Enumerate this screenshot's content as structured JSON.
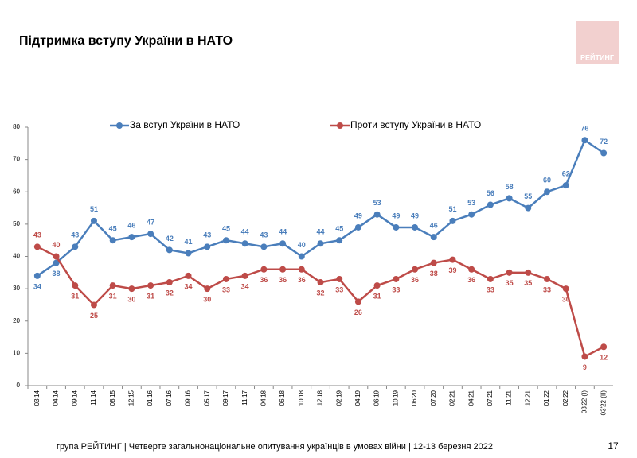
{
  "slide_title": "Підтримка вступу України в НАТО",
  "logo": "РЕЙТИНГ",
  "chart_data": {
    "type": "line",
    "categories": [
      "03'14",
      "04'14",
      "09'14",
      "11'14",
      "08'15",
      "12'15",
      "01'16",
      "07'16",
      "09'16",
      "05'17",
      "09'17",
      "11'17",
      "04'18",
      "06'18",
      "10'18",
      "12'18",
      "02'19",
      "04'19",
      "06'19",
      "10'19",
      "06'20",
      "07'20",
      "02'21",
      "04'21",
      "07'21",
      "11'21",
      "12'21",
      "01'22",
      "02'22",
      "03'22 (I)",
      "03'22 (II)"
    ],
    "series": [
      {
        "name": "За вступ України в НАТО",
        "color": "#4a7ebb",
        "values": [
          34,
          38,
          43,
          51,
          45,
          46,
          47,
          42,
          41,
          43,
          45,
          44,
          43,
          44,
          40,
          44,
          45,
          49,
          53,
          49,
          49,
          46,
          51,
          53,
          56,
          58,
          55,
          60,
          62,
          76,
          72
        ]
      },
      {
        "name": "Проти вступу України в НАТО",
        "color": "#be4b48",
        "values": [
          43,
          40,
          31,
          25,
          31,
          30,
          31,
          32,
          34,
          30,
          33,
          34,
          36,
          36,
          36,
          32,
          33,
          26,
          31,
          33,
          36,
          38,
          39,
          36,
          33,
          35,
          35,
          33,
          30,
          9,
          12
        ]
      }
    ],
    "ylim": [
      0,
      80
    ],
    "yticks": [
      0,
      10,
      20,
      30,
      40,
      50,
      60,
      70,
      80
    ],
    "legend": "top"
  },
  "footer": "група РЕЙТИНГ | Четверте загальнонаціональне опитування українців в умовах війни | 12-13 березня 2022",
  "page_number": "17"
}
